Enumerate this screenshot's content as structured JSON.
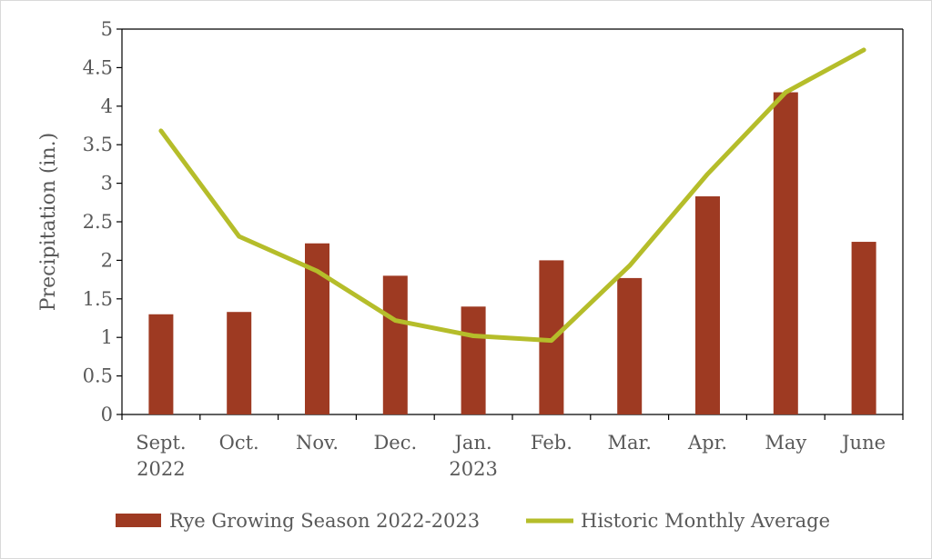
{
  "chart_data": {
    "type": "bar",
    "title": "",
    "xlabel": "",
    "ylabel": "Precipitation (in.)",
    "ylim": [
      0,
      5
    ],
    "yticks": [
      "0",
      "0.5",
      "1",
      "1.5",
      "2",
      "2.5",
      "3",
      "3.5",
      "4",
      "4.5",
      "5"
    ],
    "categories": [
      [
        "Sept.",
        "2022"
      ],
      [
        "Oct."
      ],
      [
        "Nov."
      ],
      [
        "Dec."
      ],
      [
        "Jan.",
        "2023"
      ],
      [
        "Feb."
      ],
      [
        "Mar."
      ],
      [
        "Apr."
      ],
      [
        "May"
      ],
      [
        "June"
      ]
    ],
    "series": [
      {
        "name": "Rye Growing Season 2022-2023",
        "type": "bar",
        "color": "#9e3a22",
        "values": [
          1.3,
          1.33,
          2.22,
          1.8,
          1.4,
          2.0,
          1.77,
          2.83,
          4.18,
          2.24
        ]
      },
      {
        "name": "Historic Monthly Average",
        "type": "line",
        "color": "#b5bd2a",
        "values": [
          3.68,
          2.31,
          1.86,
          1.22,
          1.02,
          0.96,
          1.93,
          3.12,
          4.18,
          4.73
        ]
      }
    ],
    "grid": false,
    "legend_position": "bottom"
  }
}
